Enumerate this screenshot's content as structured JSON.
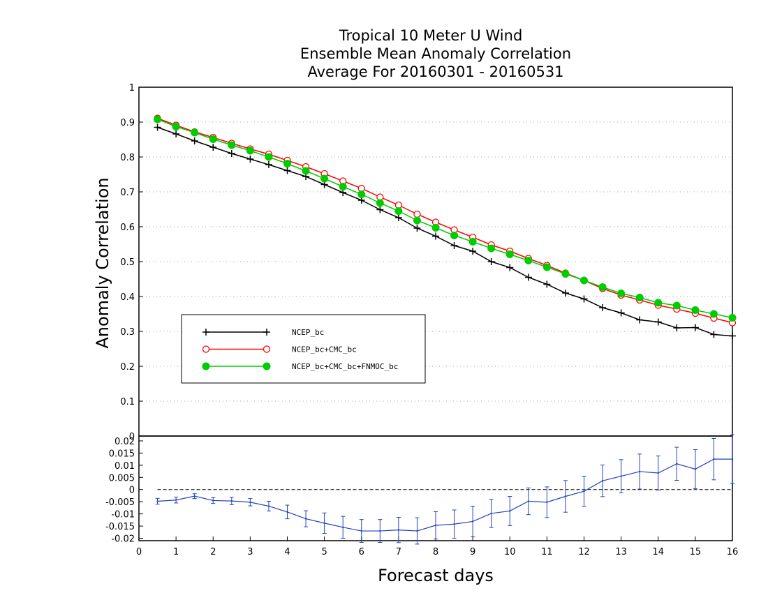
{
  "chart_data": [
    {
      "type": "line",
      "title_lines": [
        "Tropical 10 Meter U Wind",
        "Ensemble Mean Anomaly Correlation",
        "Average For 20160301 - 20160531"
      ],
      "ylabel": "Anomaly Correlation",
      "xlim": [
        0,
        16
      ],
      "ylim": [
        0,
        1
      ],
      "yticks": [
        "0",
        "0.1",
        "0.2",
        "0.3",
        "0.4",
        "0.5",
        "0.6",
        "0.7",
        "0.8",
        "0.9",
        "1"
      ],
      "grid": true,
      "legend_position": "lower-left",
      "x": [
        0.5,
        1,
        1.5,
        2,
        2.5,
        3,
        3.5,
        4,
        4.5,
        5,
        5.5,
        6,
        6.5,
        7,
        7.5,
        8,
        8.5,
        9,
        9.5,
        10,
        10.5,
        11,
        11.5,
        12,
        12.5,
        13,
        13.5,
        14,
        14.5,
        15,
        15.5,
        16
      ],
      "series": [
        {
          "name": "NCEP_bc",
          "color": "#000000",
          "marker": "plus",
          "values": [
            0.885,
            0.866,
            0.846,
            0.828,
            0.81,
            0.794,
            0.778,
            0.761,
            0.744,
            0.721,
            0.698,
            0.676,
            0.649,
            0.626,
            0.596,
            0.573,
            0.546,
            0.53,
            0.5,
            0.483,
            0.455,
            0.435,
            0.41,
            0.393,
            0.368,
            0.353,
            0.333,
            0.327,
            0.31,
            0.311,
            0.291,
            0.287
          ]
        },
        {
          "name": "NCEP_bc+CMC_bc",
          "color": "#ff0000",
          "marker": "open-circle",
          "values": [
            0.911,
            0.891,
            0.872,
            0.856,
            0.839,
            0.823,
            0.808,
            0.79,
            0.772,
            0.752,
            0.731,
            0.71,
            0.685,
            0.662,
            0.636,
            0.613,
            0.591,
            0.57,
            0.548,
            0.53,
            0.509,
            0.489,
            0.467,
            0.446,
            0.423,
            0.404,
            0.39,
            0.375,
            0.364,
            0.352,
            0.338,
            0.325
          ]
        },
        {
          "name": "NCEP_bc+CMC_bc+FNMOC_bc",
          "color": "#00cc00",
          "marker": "filled-circle",
          "values": [
            0.908,
            0.887,
            0.87,
            0.851,
            0.834,
            0.818,
            0.8,
            0.781,
            0.76,
            0.738,
            0.715,
            0.693,
            0.668,
            0.645,
            0.618,
            0.597,
            0.575,
            0.557,
            0.538,
            0.521,
            0.503,
            0.484,
            0.465,
            0.446,
            0.427,
            0.409,
            0.397,
            0.382,
            0.374,
            0.361,
            0.35,
            0.339
          ]
        }
      ]
    },
    {
      "type": "line",
      "xlabel": "Forecast days",
      "xlim": [
        0,
        16
      ],
      "ylim": [
        -0.021,
        0.022
      ],
      "xticks": [
        "0",
        "1",
        "2",
        "3",
        "4",
        "5",
        "6",
        "7",
        "8",
        "9",
        "10",
        "11",
        "12",
        "13",
        "14",
        "15",
        "16"
      ],
      "yticks": [
        "-0.02",
        "-0.015",
        "-0.01",
        "-0.005",
        "0",
        "0.005",
        "0.01",
        "0.015",
        "0.02"
      ],
      "color": "#2040c0",
      "x": [
        0.5,
        1,
        1.5,
        2,
        2.5,
        3,
        3.5,
        4,
        4.5,
        5,
        5.5,
        6,
        6.5,
        7,
        7.5,
        8,
        8.5,
        9,
        9.5,
        10,
        10.5,
        11,
        11.5,
        12,
        12.5,
        13,
        13.5,
        14,
        14.5,
        15,
        15.5,
        16
      ],
      "values": [
        -0.0048,
        -0.0043,
        -0.0027,
        -0.0045,
        -0.0047,
        -0.0052,
        -0.0068,
        -0.0092,
        -0.012,
        -0.0138,
        -0.0155,
        -0.017,
        -0.017,
        -0.0166,
        -0.017,
        -0.0147,
        -0.0142,
        -0.0131,
        -0.0098,
        -0.0088,
        -0.0048,
        -0.0052,
        -0.0028,
        -0.0007,
        0.0036,
        0.0055,
        0.0074,
        0.0068,
        0.0106,
        0.0084,
        0.0125,
        0.0125
      ],
      "errors": [
        0.0012,
        0.0012,
        0.001,
        0.0012,
        0.0015,
        0.0015,
        0.002,
        0.0028,
        0.0033,
        0.0042,
        0.0045,
        0.0047,
        0.0047,
        0.0052,
        0.0054,
        0.0056,
        0.0058,
        0.0063,
        0.0058,
        0.006,
        0.0055,
        0.0063,
        0.0065,
        0.0062,
        0.0065,
        0.0068,
        0.0072,
        0.007,
        0.0068,
        0.008,
        0.0085,
        0.01
      ],
      "reference_line": 0
    }
  ]
}
